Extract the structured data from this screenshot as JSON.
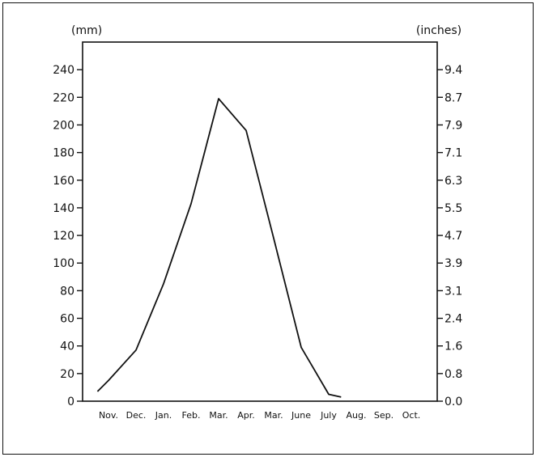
{
  "chart_data": {
    "type": "line",
    "left_unit_label": "(mm)",
    "right_unit_label": "(inches)",
    "categories": [
      "Nov.",
      "Dec.",
      "Jan.",
      "Feb.",
      "Mar.",
      "Apr.",
      "Mar.",
      "June",
      "July",
      "Aug.",
      "Sep.",
      "Oct."
    ],
    "ylim": [
      0,
      260
    ],
    "left_ticks": [
      0,
      20,
      40,
      60,
      80,
      100,
      120,
      140,
      160,
      180,
      200,
      220,
      240
    ],
    "right_ticks": [
      "0.0",
      "0.8",
      "1.6",
      "2.4",
      "3.1",
      "3.9",
      "4.7",
      "5.5",
      "6.3",
      "7.1",
      "7.9",
      "8.7",
      "9.4"
    ],
    "series": [
      {
        "x": [
          -0.4,
          0.0,
          1.0,
          2.0,
          3.0,
          4.0,
          5.0,
          6.0,
          7.0,
          8.0,
          8.45
        ],
        "y": [
          7,
          15,
          37,
          85,
          143,
          219,
          196,
          118,
          39,
          5,
          3
        ]
      }
    ],
    "grid": false
  }
}
